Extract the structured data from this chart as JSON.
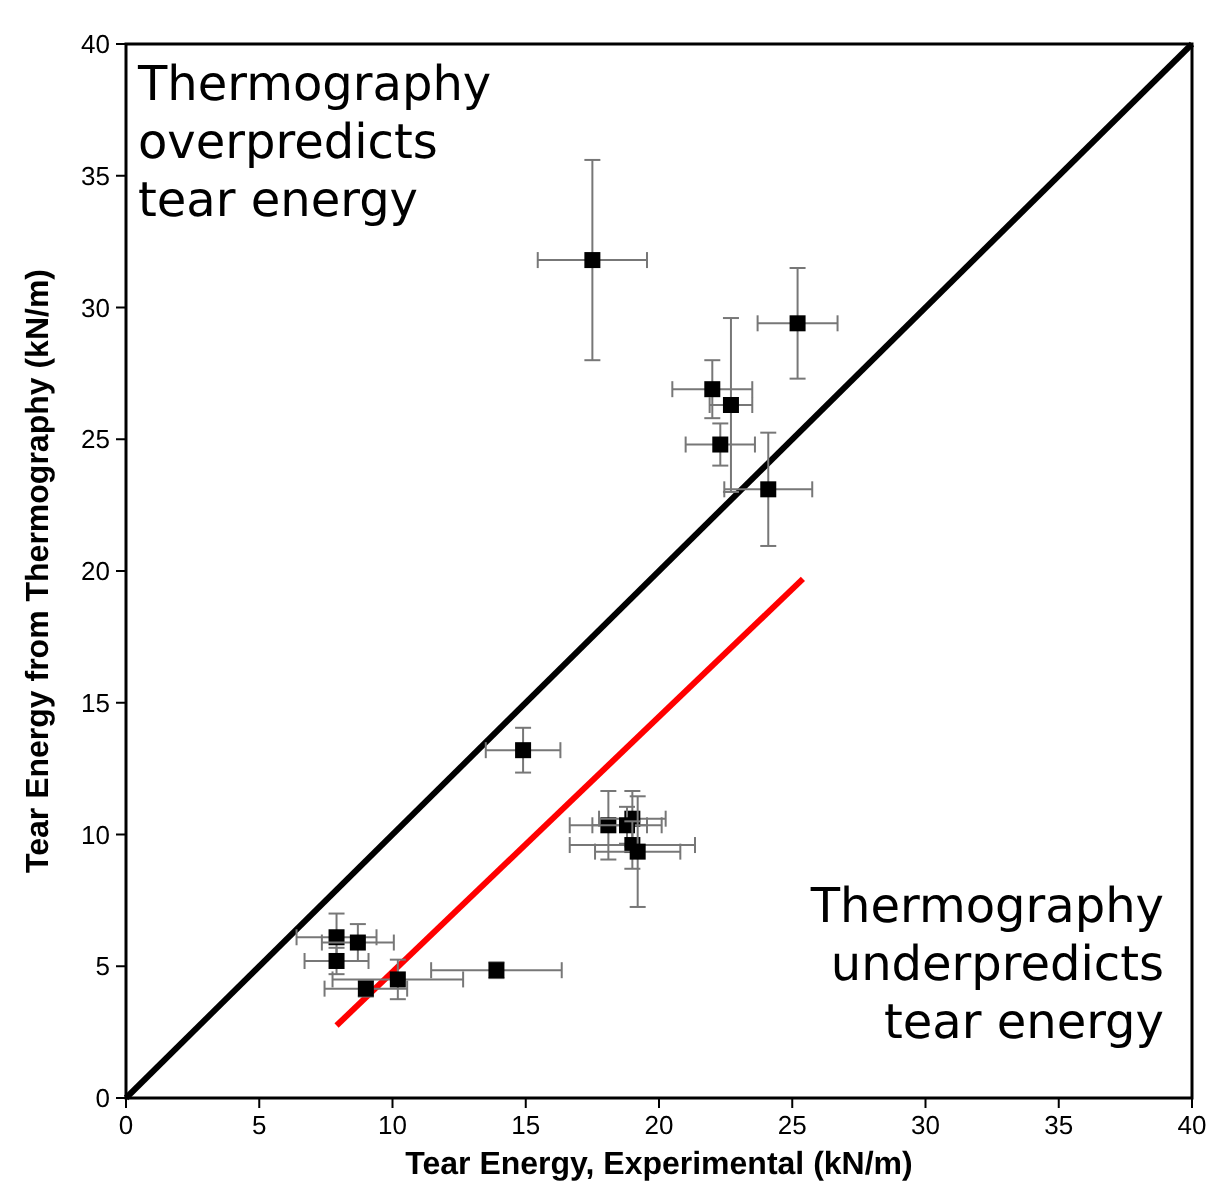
{
  "chart_data": {
    "type": "scatter",
    "xlabel": "Tear Energy, Experimental (kN/m)",
    "ylabel": "Tear Energy from Thermography (kN/m)",
    "xlim": [
      0,
      40
    ],
    "ylim": [
      0,
      40
    ],
    "xticks": [
      0,
      5,
      10,
      15,
      20,
      25,
      30,
      35,
      40
    ],
    "yticks": [
      0,
      5,
      10,
      15,
      20,
      25,
      30,
      35,
      40
    ],
    "annotations": [
      "Thermography\noverpredicts\ntear energy",
      "Thermography\nunderpredicts\ntear energy"
    ],
    "series": [
      {
        "type": "line",
        "color": "#000000",
        "x": [
          0,
          40
        ],
        "values": [
          0,
          40
        ]
      },
      {
        "type": "line",
        "color": "#ff0000",
        "x": [
          7.9,
          25.4
        ],
        "values": [
          2.75,
          19.7
        ]
      },
      {
        "marker": "square",
        "color": "#000000",
        "x": [
          17.5,
          25.2,
          22.0,
          22.7,
          22.3,
          24.1,
          14.9,
          18.1,
          19.0,
          18.8,
          19.0,
          19.2,
          7.9,
          8.7,
          7.9,
          9.0,
          10.2,
          13.9
        ],
        "values": [
          31.8,
          29.4,
          26.9,
          26.3,
          24.8,
          23.1,
          13.2,
          10.35,
          10.6,
          10.35,
          9.6,
          9.35,
          6.1,
          5.9,
          5.2,
          4.15,
          4.5,
          4.85
        ],
        "xerrors": [
          2.05,
          1.5,
          1.5,
          0.8,
          1.3,
          1.65,
          1.4,
          1.45,
          1.25,
          1.3,
          2.35,
          1.6,
          1.5,
          1.35,
          1.2,
          1.55,
          2.45,
          2.45
        ],
        "errors": [
          3.8,
          2.1,
          1.1,
          3.3,
          0.8,
          2.15,
          0.85,
          1.3,
          1.05,
          0.7,
          0.9,
          2.1,
          0.9,
          0.7,
          0.5,
          0.3,
          0.75,
          0.3
        ]
      }
    ]
  }
}
